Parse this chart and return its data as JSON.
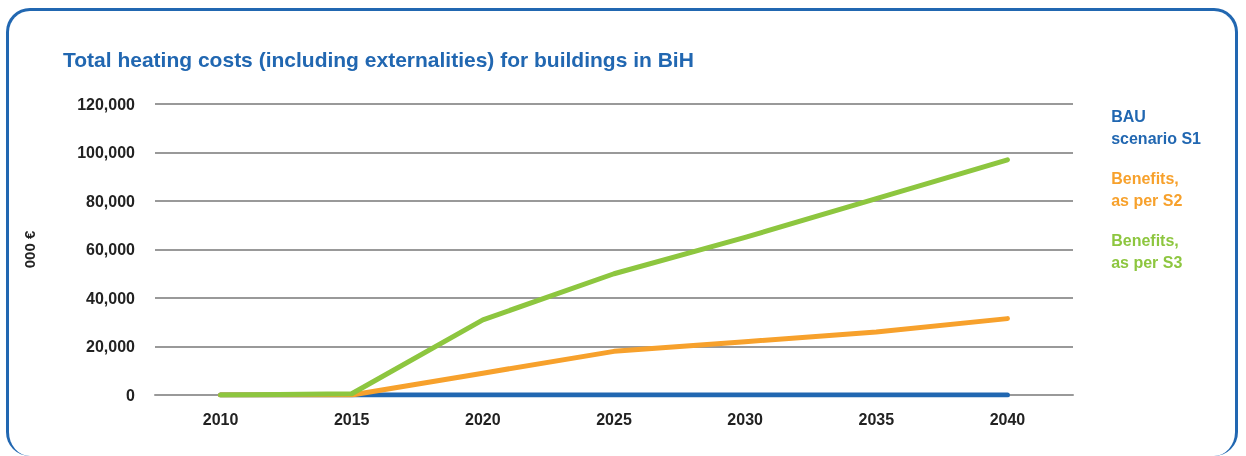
{
  "chart_data": {
    "type": "line",
    "title": "Total heating costs (including externalities) for buildings in BiH",
    "ylabel": "000 €",
    "categories": [
      "2010",
      "2015",
      "2020",
      "2025",
      "2030",
      "2035",
      "2040"
    ],
    "series": [
      {
        "name": "BAU\nscenario S1",
        "color": "#2167b1",
        "values": [
          0,
          0,
          0,
          0,
          0,
          0,
          0
        ]
      },
      {
        "name": "Benefits,\nas per S2",
        "color": "#f7a12c",
        "values": [
          0,
          0,
          9000,
          18000,
          22000,
          26000,
          31500
        ]
      },
      {
        "name": "Benefits,\nas per S3",
        "color": "#8dc63f",
        "values": [
          0,
          500,
          31000,
          50000,
          65000,
          81000,
          97000
        ]
      }
    ],
    "ylim": [
      0,
      120000
    ],
    "yticks": [
      0,
      {
        "value": 20000,
        "label": "20,000"
      },
      {
        "value": 40000,
        "label": "40,000"
      },
      {
        "value": 60000,
        "label": "60,000"
      },
      {
        "value": 80000,
        "label": "80,000"
      },
      {
        "value": 100000,
        "label": "100,000"
      },
      {
        "value": 120000,
        "label": "120,000"
      }
    ],
    "grid": "y",
    "legend": "right",
    "marker": "none",
    "line_style": "solid"
  }
}
